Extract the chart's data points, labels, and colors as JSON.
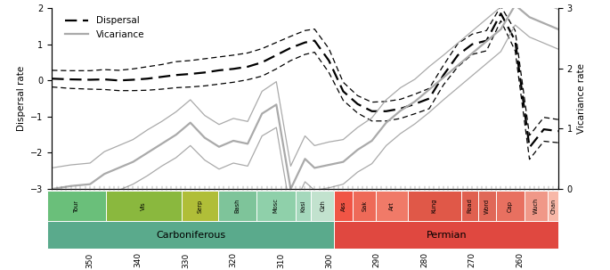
{
  "ylabel_left": "Dispersal rate",
  "ylabel_right": "Vicariance rate",
  "xlim": [
    358,
    252
  ],
  "ylim_left": [
    -3,
    2
  ],
  "ylim_right": [
    0,
    3
  ],
  "x_ticks": [
    350,
    340,
    330,
    320,
    310,
    300,
    290,
    280,
    270,
    260
  ],
  "dispersal_x": [
    358,
    354,
    350,
    347,
    344,
    341,
    338,
    335,
    332,
    329,
    326,
    323,
    320,
    317,
    314,
    311,
    308,
    305,
    303,
    300,
    297,
    294,
    291,
    288,
    285,
    282,
    279,
    276,
    273,
    270,
    267,
    264,
    261,
    258,
    255,
    252
  ],
  "dispersal_mid": [
    0.05,
    0.03,
    0.02,
    0.03,
    0.0,
    0.02,
    0.05,
    0.1,
    0.15,
    0.18,
    0.22,
    0.28,
    0.32,
    0.38,
    0.5,
    0.7,
    0.9,
    1.05,
    1.1,
    0.55,
    -0.3,
    -0.65,
    -0.85,
    -0.85,
    -0.78,
    -0.65,
    -0.5,
    0.15,
    0.7,
    1.0,
    1.1,
    1.85,
    1.1,
    -1.85,
    -1.35,
    -1.4
  ],
  "dispersal_upper": [
    0.28,
    0.27,
    0.27,
    0.3,
    0.28,
    0.32,
    0.38,
    0.44,
    0.52,
    0.55,
    0.6,
    0.65,
    0.7,
    0.76,
    0.88,
    1.05,
    1.22,
    1.38,
    1.42,
    0.88,
    -0.05,
    -0.42,
    -0.6,
    -0.58,
    -0.52,
    -0.38,
    -0.22,
    0.42,
    1.02,
    1.28,
    1.38,
    2.05,
    1.38,
    -1.52,
    -1.02,
    -1.08
  ],
  "dispersal_lower": [
    -0.18,
    -0.22,
    -0.24,
    -0.25,
    -0.28,
    -0.28,
    -0.27,
    -0.24,
    -0.2,
    -0.18,
    -0.15,
    -0.1,
    -0.05,
    0.02,
    0.12,
    0.32,
    0.55,
    0.72,
    0.78,
    0.22,
    -0.55,
    -0.9,
    -1.12,
    -1.12,
    -1.05,
    -0.92,
    -0.78,
    -0.12,
    0.38,
    0.72,
    0.82,
    1.65,
    0.82,
    -2.18,
    -1.68,
    -1.72
  ],
  "vicariance_x": [
    358,
    354,
    350,
    347,
    344,
    341,
    338,
    335,
    332,
    329,
    326,
    323,
    320,
    317,
    314,
    311,
    308,
    305,
    303,
    300,
    297,
    294,
    291,
    288,
    285,
    282,
    279,
    276,
    273,
    270,
    267,
    264,
    261,
    258,
    255,
    252
  ],
  "vicariance_mid": [
    0.0,
    0.05,
    0.08,
    0.25,
    0.35,
    0.45,
    0.6,
    0.75,
    0.9,
    1.1,
    0.85,
    0.7,
    0.8,
    0.75,
    1.25,
    1.4,
    0.0,
    0.5,
    0.35,
    0.4,
    0.45,
    0.65,
    0.8,
    1.1,
    1.3,
    1.45,
    1.65,
    1.85,
    2.05,
    2.25,
    2.45,
    2.65,
    3.05,
    2.85,
    2.75,
    2.65
  ],
  "vicariance_upper": [
    0.35,
    0.4,
    0.43,
    0.62,
    0.72,
    0.82,
    0.98,
    1.12,
    1.28,
    1.48,
    1.22,
    1.07,
    1.17,
    1.12,
    1.62,
    1.78,
    0.38,
    0.88,
    0.72,
    0.78,
    0.82,
    1.02,
    1.18,
    1.48,
    1.68,
    1.82,
    2.03,
    2.22,
    2.42,
    2.62,
    2.82,
    3.02,
    3.38,
    3.18,
    3.08,
    2.98
  ],
  "vicariance_lower": [
    -0.35,
    -0.3,
    -0.27,
    -0.12,
    -0.02,
    0.08,
    0.22,
    0.38,
    0.52,
    0.72,
    0.48,
    0.33,
    0.43,
    0.38,
    0.88,
    1.02,
    -0.38,
    0.12,
    -0.02,
    0.02,
    0.08,
    0.28,
    0.42,
    0.72,
    0.92,
    1.08,
    1.27,
    1.48,
    1.68,
    1.88,
    2.08,
    2.28,
    2.72,
    2.52,
    2.42,
    2.32
  ],
  "geo_periods": [
    {
      "name": "Carboniferous",
      "start": 358.9,
      "end": 298.9,
      "color": "#5aaa8c"
    },
    {
      "name": "Permian",
      "start": 298.9,
      "end": 251.9,
      "color": "#e04840"
    }
  ],
  "geo_stages": [
    {
      "name": "Tour",
      "start": 358.9,
      "end": 346.7,
      "color": "#6abf7a"
    },
    {
      "name": "Vis",
      "start": 346.7,
      "end": 330.9,
      "color": "#8ab83e"
    },
    {
      "name": "Serp",
      "start": 330.9,
      "end": 323.2,
      "color": "#b0be38"
    },
    {
      "name": "Bash",
      "start": 323.2,
      "end": 315.2,
      "color": "#7ec49a"
    },
    {
      "name": "Mosc",
      "start": 315.2,
      "end": 307.0,
      "color": "#8fd0aa"
    },
    {
      "name": "Kasi",
      "start": 307.0,
      "end": 303.7,
      "color": "#a5d8bc"
    },
    {
      "name": "Gzh",
      "start": 303.7,
      "end": 298.9,
      "color": "#c2e2ce"
    },
    {
      "name": "Ass",
      "start": 298.9,
      "end": 295.0,
      "color": "#f05545"
    },
    {
      "name": "Sak",
      "start": 295.0,
      "end": 290.1,
      "color": "#ee6a58"
    },
    {
      "name": "Art",
      "start": 290.1,
      "end": 283.5,
      "color": "#f07a68"
    },
    {
      "name": "Kung",
      "start": 283.5,
      "end": 272.3,
      "color": "#e05848"
    },
    {
      "name": "Road",
      "start": 272.3,
      "end": 268.8,
      "color": "#e06050"
    },
    {
      "name": "Word",
      "start": 268.8,
      "end": 265.1,
      "color": "#e06858"
    },
    {
      "name": "Cap",
      "start": 265.1,
      "end": 259.1,
      "color": "#e87060"
    },
    {
      "name": "Wuch",
      "start": 259.1,
      "end": 254.14,
      "color": "#f09888"
    },
    {
      "name": "Chan",
      "start": 254.14,
      "end": 251.9,
      "color": "#f8b8a8"
    }
  ]
}
